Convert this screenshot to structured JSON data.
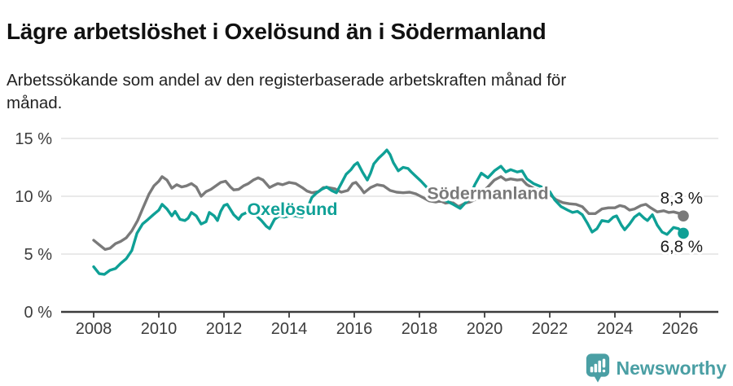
{
  "header": {
    "title": "Lägre arbetslöshet i Oxelösund än i Södermanland",
    "subtitle_line1": "Arbetssökande som andel av den registerbaserade arbetskraften månad för",
    "subtitle_line2": "månad."
  },
  "chart_data": {
    "type": "line",
    "title": "Lägre arbetslöshet i Oxelösund än i Södermanland",
    "subtitle": "Arbetssökande som andel av den registerbaserade arbetskraften månad för månad.",
    "grid": "horizontal",
    "legend_position": "inline-labels",
    "x_axis": {
      "ticks": [
        2008,
        2010,
        2012,
        2014,
        2016,
        2018,
        2020,
        2022,
        2024,
        2026
      ],
      "range": [
        2007,
        2027.2
      ]
    },
    "y_axis": {
      "ticks": [
        {
          "value": 0,
          "label": "0 %"
        },
        {
          "value": 5,
          "label": "5 %"
        },
        {
          "value": 10,
          "label": "10 %"
        },
        {
          "value": 15,
          "label": "15 %"
        }
      ],
      "range": [
        0,
        15.5
      ]
    },
    "series": [
      {
        "name": "Södermanland",
        "color": "#7a7a7a",
        "end_label": "8,3 %",
        "end_value": 8.3,
        "end_label_side": "above",
        "inline_label": {
          "x": 2020.1,
          "y": 10.3
        },
        "points": [
          [
            2008.0,
            6.2
          ],
          [
            2008.17,
            5.8
          ],
          [
            2008.35,
            5.4
          ],
          [
            2008.5,
            5.5
          ],
          [
            2008.67,
            5.9
          ],
          [
            2008.83,
            6.1
          ],
          [
            2009.0,
            6.4
          ],
          [
            2009.17,
            7.0
          ],
          [
            2009.35,
            7.9
          ],
          [
            2009.5,
            8.9
          ],
          [
            2009.7,
            10.2
          ],
          [
            2009.85,
            10.9
          ],
          [
            2010.0,
            11.3
          ],
          [
            2010.1,
            11.7
          ],
          [
            2010.25,
            11.4
          ],
          [
            2010.4,
            10.7
          ],
          [
            2010.55,
            11.0
          ],
          [
            2010.7,
            10.8
          ],
          [
            2010.85,
            10.9
          ],
          [
            2011.0,
            11.1
          ],
          [
            2011.15,
            10.8
          ],
          [
            2011.3,
            10.0
          ],
          [
            2011.45,
            10.4
          ],
          [
            2011.6,
            10.6
          ],
          [
            2011.75,
            10.9
          ],
          [
            2011.9,
            11.2
          ],
          [
            2012.05,
            11.3
          ],
          [
            2012.2,
            10.8
          ],
          [
            2012.3,
            10.55
          ],
          [
            2012.45,
            10.6
          ],
          [
            2012.6,
            10.9
          ],
          [
            2012.75,
            11.1
          ],
          [
            2012.9,
            11.4
          ],
          [
            2013.05,
            11.6
          ],
          [
            2013.2,
            11.4
          ],
          [
            2013.4,
            10.75
          ],
          [
            2013.5,
            10.9
          ],
          [
            2013.65,
            11.1
          ],
          [
            2013.8,
            11.0
          ],
          [
            2014.0,
            11.2
          ],
          [
            2014.2,
            11.1
          ],
          [
            2014.4,
            10.75
          ],
          [
            2014.55,
            10.45
          ],
          [
            2014.7,
            10.3
          ],
          [
            2014.9,
            10.4
          ],
          [
            2015.05,
            10.75
          ],
          [
            2015.2,
            10.75
          ],
          [
            2015.4,
            10.65
          ],
          [
            2015.6,
            10.35
          ],
          [
            2015.8,
            10.5
          ],
          [
            2015.95,
            11.1
          ],
          [
            2016.05,
            11.2
          ],
          [
            2016.2,
            10.7
          ],
          [
            2016.3,
            10.3
          ],
          [
            2016.5,
            10.75
          ],
          [
            2016.7,
            11.0
          ],
          [
            2016.9,
            10.9
          ],
          [
            2017.1,
            10.5
          ],
          [
            2017.3,
            10.35
          ],
          [
            2017.5,
            10.3
          ],
          [
            2017.7,
            10.35
          ],
          [
            2017.9,
            10.2
          ],
          [
            2018.1,
            9.9
          ],
          [
            2018.3,
            9.6
          ],
          [
            2018.5,
            9.5
          ],
          [
            2018.65,
            9.6
          ],
          [
            2018.8,
            9.4
          ],
          [
            2019.0,
            9.5
          ],
          [
            2019.2,
            9.1
          ],
          [
            2019.4,
            9.4
          ],
          [
            2019.55,
            9.5
          ],
          [
            2019.7,
            9.7
          ],
          [
            2019.9,
            10.3
          ],
          [
            2020.1,
            10.8
          ],
          [
            2020.3,
            11.4
          ],
          [
            2020.5,
            11.7
          ],
          [
            2020.65,
            11.4
          ],
          [
            2020.8,
            11.5
          ],
          [
            2021.0,
            11.4
          ],
          [
            2021.15,
            11.45
          ],
          [
            2021.3,
            11.0
          ],
          [
            2021.5,
            10.7
          ],
          [
            2021.75,
            10.4
          ],
          [
            2022.0,
            10.15
          ],
          [
            2022.2,
            9.7
          ],
          [
            2022.4,
            9.45
          ],
          [
            2022.6,
            9.35
          ],
          [
            2022.8,
            9.3
          ],
          [
            2023.0,
            9.1
          ],
          [
            2023.2,
            8.5
          ],
          [
            2023.4,
            8.5
          ],
          [
            2023.6,
            8.9
          ],
          [
            2023.8,
            9.0
          ],
          [
            2024.0,
            9.0
          ],
          [
            2024.15,
            9.2
          ],
          [
            2024.3,
            9.1
          ],
          [
            2024.45,
            8.8
          ],
          [
            2024.6,
            8.9
          ],
          [
            2024.8,
            9.2
          ],
          [
            2024.95,
            9.3
          ],
          [
            2025.1,
            9.0
          ],
          [
            2025.3,
            8.65
          ],
          [
            2025.5,
            8.75
          ],
          [
            2025.65,
            8.6
          ],
          [
            2025.8,
            8.65
          ],
          [
            2026.0,
            8.5
          ],
          [
            2026.1,
            8.3
          ]
        ]
      },
      {
        "name": "Oxelösund",
        "color": "#0fa096",
        "end_label": "6,8 %",
        "end_value": 6.8,
        "end_label_side": "below",
        "inline_label": {
          "x": 2014.1,
          "y": 8.95
        },
        "points": [
          [
            2008.0,
            3.9
          ],
          [
            2008.17,
            3.3
          ],
          [
            2008.33,
            3.25
          ],
          [
            2008.5,
            3.6
          ],
          [
            2008.67,
            3.75
          ],
          [
            2008.83,
            4.2
          ],
          [
            2009.0,
            4.6
          ],
          [
            2009.17,
            5.3
          ],
          [
            2009.33,
            6.8
          ],
          [
            2009.5,
            7.6
          ],
          [
            2009.67,
            8.0
          ],
          [
            2009.83,
            8.4
          ],
          [
            2010.0,
            8.8
          ],
          [
            2010.1,
            9.3
          ],
          [
            2010.25,
            8.9
          ],
          [
            2010.4,
            8.3
          ],
          [
            2010.5,
            8.7
          ],
          [
            2010.65,
            8.0
          ],
          [
            2010.8,
            7.9
          ],
          [
            2010.9,
            8.1
          ],
          [
            2011.0,
            8.6
          ],
          [
            2011.15,
            8.3
          ],
          [
            2011.3,
            7.6
          ],
          [
            2011.45,
            7.8
          ],
          [
            2011.55,
            8.6
          ],
          [
            2011.7,
            8.3
          ],
          [
            2011.8,
            7.9
          ],
          [
            2011.9,
            8.7
          ],
          [
            2012.0,
            9.2
          ],
          [
            2012.1,
            9.3
          ],
          [
            2012.3,
            8.4
          ],
          [
            2012.45,
            8.0
          ],
          [
            2012.55,
            8.4
          ],
          [
            2012.7,
            8.6
          ],
          [
            2012.85,
            8.5
          ],
          [
            2013.0,
            8.3
          ],
          [
            2013.15,
            7.9
          ],
          [
            2013.3,
            7.4
          ],
          [
            2013.4,
            7.2
          ],
          [
            2013.55,
            8.0
          ],
          [
            2013.7,
            8.3
          ],
          [
            2013.85,
            8.2
          ],
          [
            2014.0,
            8.3
          ],
          [
            2014.2,
            8.3
          ],
          [
            2014.4,
            8.2
          ],
          [
            2014.55,
            8.9
          ],
          [
            2014.7,
            9.9
          ],
          [
            2014.85,
            10.3
          ],
          [
            2015.0,
            10.6
          ],
          [
            2015.15,
            10.8
          ],
          [
            2015.3,
            10.5
          ],
          [
            2015.45,
            10.3
          ],
          [
            2015.6,
            11.1
          ],
          [
            2015.75,
            11.9
          ],
          [
            2015.9,
            12.3
          ],
          [
            2016.0,
            12.7
          ],
          [
            2016.1,
            12.9
          ],
          [
            2016.25,
            12.1
          ],
          [
            2016.4,
            11.4
          ],
          [
            2016.5,
            12.0
          ],
          [
            2016.6,
            12.8
          ],
          [
            2016.75,
            13.3
          ],
          [
            2016.9,
            13.7
          ],
          [
            2017.0,
            14.0
          ],
          [
            2017.1,
            13.6
          ],
          [
            2017.2,
            12.9
          ],
          [
            2017.35,
            12.2
          ],
          [
            2017.5,
            12.5
          ],
          [
            2017.65,
            12.4
          ],
          [
            2017.75,
            12.1
          ],
          [
            2017.9,
            11.7
          ],
          [
            2018.05,
            11.3
          ],
          [
            2018.25,
            10.7
          ],
          [
            2018.5,
            10.2
          ],
          [
            2018.75,
            9.7
          ],
          [
            2019.0,
            9.35
          ],
          [
            2019.25,
            8.95
          ],
          [
            2019.5,
            9.7
          ],
          [
            2019.7,
            11.0
          ],
          [
            2019.9,
            12.0
          ],
          [
            2020.1,
            11.6
          ],
          [
            2020.3,
            12.2
          ],
          [
            2020.5,
            12.6
          ],
          [
            2020.65,
            12.1
          ],
          [
            2020.8,
            12.3
          ],
          [
            2021.0,
            12.1
          ],
          [
            2021.15,
            12.2
          ],
          [
            2021.3,
            11.5
          ],
          [
            2021.5,
            11.1
          ],
          [
            2021.75,
            10.8
          ],
          [
            2022.0,
            10.4
          ],
          [
            2022.15,
            9.7
          ],
          [
            2022.35,
            9.1
          ],
          [
            2022.55,
            8.8
          ],
          [
            2022.7,
            8.6
          ],
          [
            2022.85,
            8.7
          ],
          [
            2023.0,
            8.4
          ],
          [
            2023.15,
            7.7
          ],
          [
            2023.3,
            6.9
          ],
          [
            2023.45,
            7.2
          ],
          [
            2023.6,
            7.9
          ],
          [
            2023.8,
            7.8
          ],
          [
            2023.95,
            8.2
          ],
          [
            2024.05,
            8.3
          ],
          [
            2024.2,
            7.5
          ],
          [
            2024.3,
            7.1
          ],
          [
            2024.45,
            7.6
          ],
          [
            2024.6,
            8.2
          ],
          [
            2024.75,
            8.5
          ],
          [
            2024.9,
            8.1
          ],
          [
            2025.0,
            7.9
          ],
          [
            2025.15,
            8.4
          ],
          [
            2025.3,
            7.5
          ],
          [
            2025.45,
            6.9
          ],
          [
            2025.6,
            6.7
          ],
          [
            2025.8,
            7.3
          ],
          [
            2025.95,
            7.2
          ],
          [
            2026.1,
            6.8
          ]
        ]
      }
    ]
  },
  "footer": {
    "logo_text": "Newsworthy",
    "logo_color": "#4a9fa4"
  }
}
